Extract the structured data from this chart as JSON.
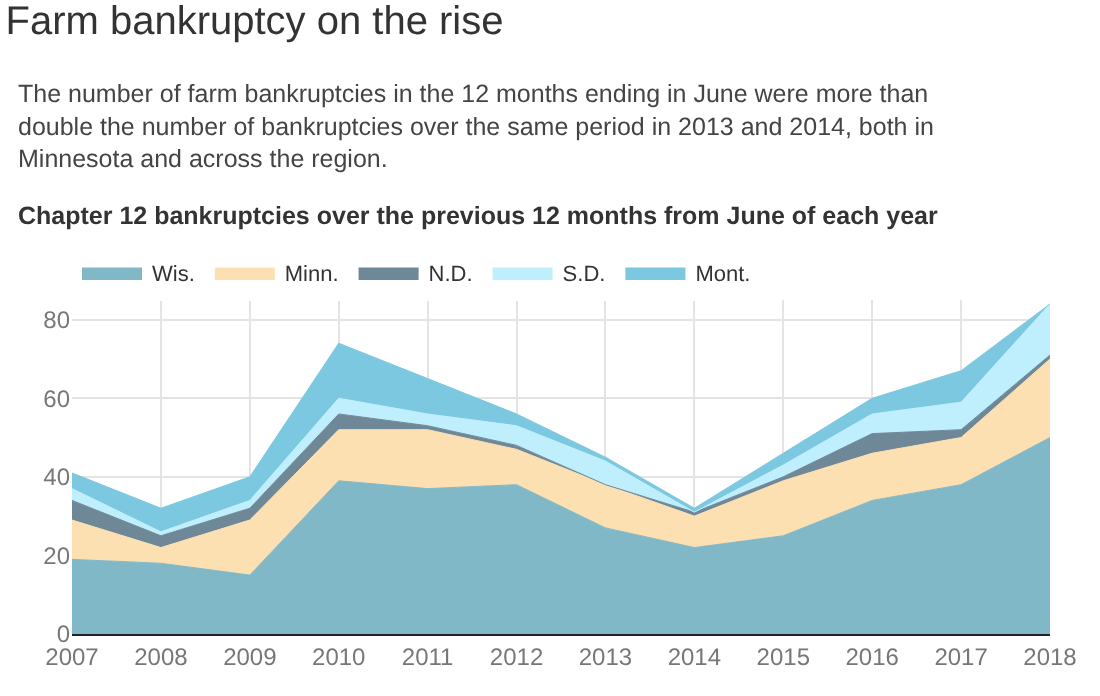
{
  "chart_data": {
    "type": "area",
    "stacked": true,
    "title": "Farm bankruptcy on the rise",
    "subtitle": "The number of farm bankruptcies in the 12 months ending in June were more than double the number of bankruptcies over the same period in 2013 and 2014, both in Minnesota and across the region.",
    "annotations": [
      "Chapter 12 bankruptcies over the previous 12 months from June of each year"
    ],
    "x": [
      2007,
      2008,
      2009,
      2010,
      2011,
      2012,
      2013,
      2014,
      2015,
      2016,
      2017,
      2018
    ],
    "series": [
      {
        "name": "Wis.",
        "color": "#80b8c8",
        "values": [
          19,
          18,
          15,
          39,
          37,
          38,
          27,
          22,
          25,
          34,
          38,
          50
        ]
      },
      {
        "name": "Minn.",
        "color": "#fde0b2",
        "values": [
          10,
          4,
          14,
          13,
          15,
          9,
          11,
          8,
          14,
          12,
          12,
          20
        ]
      },
      {
        "name": "N.D.",
        "color": "#6e8898",
        "values": [
          5,
          3,
          3,
          4,
          1,
          1,
          0,
          1,
          1,
          5,
          2,
          1
        ]
      },
      {
        "name": "S.D.",
        "color": "#bfeefc",
        "values": [
          3,
          1,
          2,
          4,
          3,
          5,
          6,
          0,
          3,
          5,
          7,
          13
        ]
      },
      {
        "name": "Mont.",
        "color": "#7cc8e0",
        "values": [
          4,
          6,
          6,
          14,
          9,
          3,
          1,
          1,
          3,
          4,
          8,
          0
        ]
      }
    ],
    "xlim": [
      2007,
      2018
    ],
    "xticks": [
      2007,
      2008,
      2009,
      2010,
      2011,
      2012,
      2013,
      2014,
      2015,
      2016,
      2017,
      2018
    ],
    "ylim": [
      0,
      85
    ],
    "yticks": [
      0,
      20,
      40,
      60,
      80
    ],
    "grid": true,
    "legend": "top left"
  }
}
